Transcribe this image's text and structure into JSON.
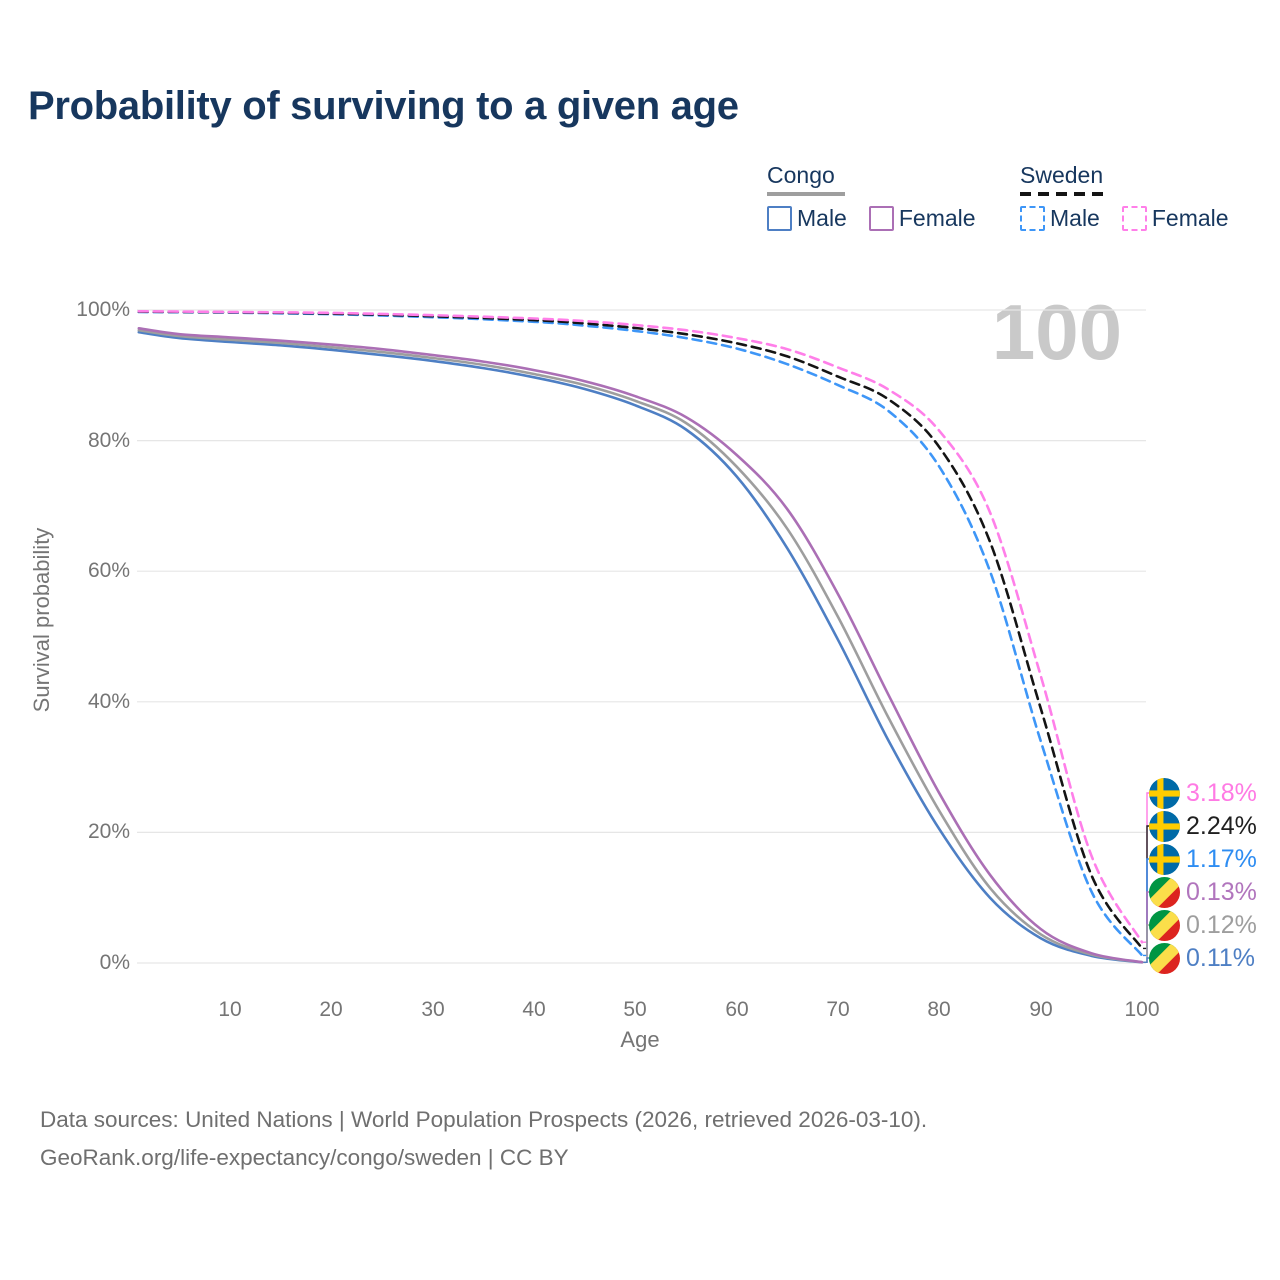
{
  "title": "Probability of surviving to a given age",
  "watermark": "100",
  "legend": {
    "groups": [
      {
        "label": "Congo",
        "underline_style": "solid",
        "underline_color": "#9e9e9e",
        "items": [
          {
            "label": "Male",
            "color": "#4e7fc4",
            "dash": false
          },
          {
            "label": "Female",
            "color": "#ab6fb5",
            "dash": false
          }
        ]
      },
      {
        "label": "Sweden",
        "underline_style": "dashed",
        "underline_color": "#141414",
        "items": [
          {
            "label": "Male",
            "color": "#3e96f7",
            "dash": true
          },
          {
            "label": "Female",
            "color": "#ff7fe9",
            "dash": true
          }
        ]
      }
    ]
  },
  "chart_data": {
    "type": "line",
    "title": "Probability of surviving to a given age",
    "xlabel": "Age",
    "ylabel": "Survival probability",
    "xlim": [
      1,
      100
    ],
    "ylim": [
      0,
      100
    ],
    "grid": "horizontal",
    "legend_position": "top-right",
    "x_ticks": [
      10,
      20,
      30,
      40,
      50,
      60,
      70,
      80,
      90,
      100
    ],
    "y_ticks": [
      {
        "value": 100,
        "label": "100%"
      },
      {
        "value": 80,
        "label": "80%"
      },
      {
        "value": 60,
        "label": "60%"
      },
      {
        "value": 40,
        "label": "40%"
      },
      {
        "value": 20,
        "label": "20%"
      },
      {
        "value": 0,
        "label": "0%"
      }
    ],
    "series": [
      {
        "name": "Congo Male",
        "country": "Congo",
        "sex": "Male",
        "flag": "congo",
        "color": "#4e7fc4",
        "dash": false,
        "end_label": {
          "text": "0.11%",
          "color": "#4e7fc4"
        },
        "points": [
          [
            1,
            96.6
          ],
          [
            5,
            95.7
          ],
          [
            10,
            95.1
          ],
          [
            15,
            94.6
          ],
          [
            20,
            93.9
          ],
          [
            25,
            93.1
          ],
          [
            30,
            92.2
          ],
          [
            35,
            91.1
          ],
          [
            40,
            89.7
          ],
          [
            45,
            87.9
          ],
          [
            50,
            85.4
          ],
          [
            55,
            81.7
          ],
          [
            60,
            74.5
          ],
          [
            65,
            63.5
          ],
          [
            70,
            49.5
          ],
          [
            75,
            34.0
          ],
          [
            80,
            20.5
          ],
          [
            85,
            10.0
          ],
          [
            90,
            3.8
          ],
          [
            95,
            1.1
          ],
          [
            100,
            0.11
          ]
        ]
      },
      {
        "name": "Congo Both sexes",
        "country": "Congo",
        "sex": "Both",
        "flag": "congo",
        "color": "#9e9e9e",
        "dash": false,
        "end_label": {
          "text": "0.12%",
          "color": "#9e9e9e"
        },
        "points": [
          [
            1,
            96.9
          ],
          [
            5,
            96.0
          ],
          [
            10,
            95.45
          ],
          [
            15,
            94.95
          ],
          [
            20,
            94.3
          ],
          [
            25,
            93.55
          ],
          [
            30,
            92.65
          ],
          [
            35,
            91.6
          ],
          [
            40,
            90.2
          ],
          [
            45,
            88.5
          ],
          [
            50,
            86.1
          ],
          [
            55,
            82.7
          ],
          [
            60,
            76.0
          ],
          [
            65,
            66.5
          ],
          [
            70,
            53.0
          ],
          [
            75,
            37.5
          ],
          [
            80,
            23.3
          ],
          [
            85,
            11.5
          ],
          [
            90,
            4.4
          ],
          [
            95,
            1.3
          ],
          [
            100,
            0.12
          ]
        ]
      },
      {
        "name": "Congo Female",
        "country": "Congo",
        "sex": "Female",
        "flag": "congo",
        "color": "#ab6fb5",
        "dash": false,
        "end_label": {
          "text": "0.13%",
          "color": "#b175bd"
        },
        "points": [
          [
            1,
            97.2
          ],
          [
            5,
            96.3
          ],
          [
            10,
            95.8
          ],
          [
            15,
            95.3
          ],
          [
            20,
            94.7
          ],
          [
            25,
            94.0
          ],
          [
            30,
            93.1
          ],
          [
            35,
            92.1
          ],
          [
            40,
            90.8
          ],
          [
            45,
            89.1
          ],
          [
            50,
            86.8
          ],
          [
            55,
            83.6
          ],
          [
            60,
            77.8
          ],
          [
            65,
            69.5
          ],
          [
            70,
            56.5
          ],
          [
            75,
            41.0
          ],
          [
            80,
            26.0
          ],
          [
            85,
            13.5
          ],
          [
            90,
            5.2
          ],
          [
            95,
            1.5
          ],
          [
            100,
            0.13
          ]
        ]
      },
      {
        "name": "Sweden Male",
        "country": "Sweden",
        "sex": "Male",
        "flag": "sweden",
        "color": "#3e96f7",
        "dash": true,
        "end_label": {
          "text": "1.17%",
          "color": "#2e8df2"
        },
        "points": [
          [
            1,
            99.7
          ],
          [
            10,
            99.6
          ],
          [
            20,
            99.35
          ],
          [
            30,
            98.9
          ],
          [
            40,
            98.2
          ],
          [
            45,
            97.6
          ],
          [
            50,
            96.8
          ],
          [
            55,
            95.7
          ],
          [
            60,
            94.1
          ],
          [
            65,
            91.7
          ],
          [
            70,
            88.5
          ],
          [
            75,
            84.5
          ],
          [
            80,
            76.0
          ],
          [
            85,
            60.0
          ],
          [
            90,
            34.0
          ],
          [
            95,
            11.0
          ],
          [
            100,
            1.17
          ]
        ]
      },
      {
        "name": "Sweden Both sexes",
        "country": "Sweden",
        "sex": "Both",
        "flag": "sweden",
        "color": "#141414",
        "dash": true,
        "end_label": {
          "text": "2.24%",
          "color": "#1f1f1f"
        },
        "points": [
          [
            1,
            99.75
          ],
          [
            10,
            99.65
          ],
          [
            20,
            99.45
          ],
          [
            30,
            99.05
          ],
          [
            40,
            98.45
          ],
          [
            45,
            97.95
          ],
          [
            50,
            97.25
          ],
          [
            55,
            96.3
          ],
          [
            60,
            94.9
          ],
          [
            65,
            92.9
          ],
          [
            70,
            89.8
          ],
          [
            75,
            86.3
          ],
          [
            80,
            79.0
          ],
          [
            85,
            64.5
          ],
          [
            90,
            39.0
          ],
          [
            95,
            13.5
          ],
          [
            100,
            2.24
          ]
        ]
      },
      {
        "name": "Sweden Female",
        "country": "Sweden",
        "sex": "Female",
        "flag": "sweden",
        "color": "#ff7fe9",
        "dash": true,
        "end_label": {
          "text": "3.18%",
          "color": "#ff7ae4"
        },
        "points": [
          [
            1,
            99.8
          ],
          [
            10,
            99.7
          ],
          [
            20,
            99.55
          ],
          [
            30,
            99.2
          ],
          [
            40,
            98.7
          ],
          [
            45,
            98.3
          ],
          [
            50,
            97.7
          ],
          [
            55,
            96.9
          ],
          [
            60,
            95.7
          ],
          [
            65,
            94.0
          ],
          [
            70,
            91.2
          ],
          [
            75,
            87.8
          ],
          [
            80,
            81.5
          ],
          [
            85,
            69.0
          ],
          [
            90,
            44.0
          ],
          [
            95,
            16.5
          ],
          [
            100,
            3.18
          ]
        ]
      }
    ]
  },
  "footer": {
    "line1": "Data sources: United Nations | World Population Prospects (2026, retrieved 2026-03-10).",
    "line2": "GeoRank.org/life-expectancy/congo/sweden | CC BY"
  }
}
